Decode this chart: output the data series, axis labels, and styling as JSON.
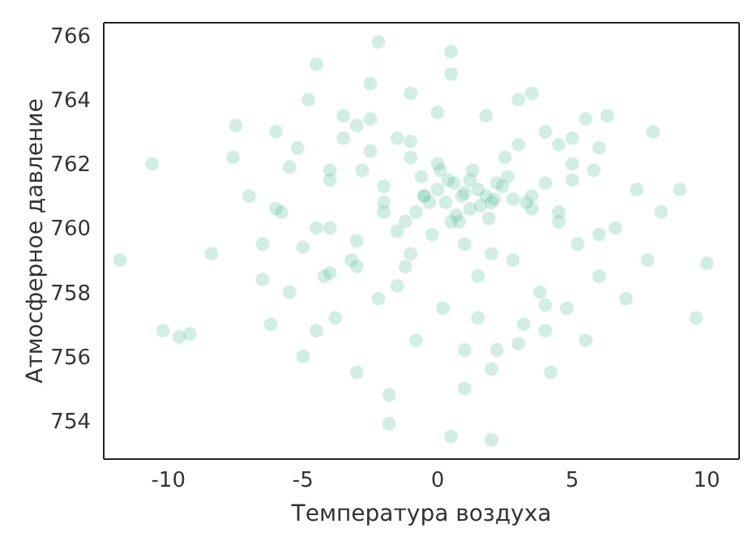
{
  "chart_data": {
    "type": "scatter",
    "xlabel": "Температура воздуха",
    "ylabel": "Атмосферное давление",
    "xlim": [
      -12.4,
      11.2
    ],
    "ylim": [
      752.8,
      766.4
    ],
    "xticks": [
      -10,
      -5,
      0,
      5,
      10
    ],
    "yticks": [
      754,
      756,
      758,
      760,
      762,
      764,
      766
    ],
    "grid": false,
    "legend": false,
    "marker": "circle",
    "series": [
      {
        "color": "#66c2a5",
        "x": [
          -11.8,
          -10.6,
          -10.2,
          -9.6,
          -9.2,
          -8.4,
          -7.6,
          -7.5,
          9.6,
          10,
          8,
          9,
          0.5,
          2,
          -1.8,
          -4.5,
          -2.2,
          0.5,
          -7,
          -6.5,
          -6.2,
          -6,
          -5.8,
          -5.5,
          -5.2,
          -5,
          -4.8,
          -4.5,
          -4.2,
          -4,
          -3.8,
          -3.5,
          -3.2,
          -3,
          -2.8,
          -2.5,
          -2.2,
          -2,
          -1.8,
          -1.5,
          -1.2,
          -1,
          -0.8,
          -0.5,
          -0.2,
          0,
          0.2,
          0.5,
          0.8,
          1,
          1.2,
          1.5,
          1.8,
          2,
          2.2,
          2.5,
          2.8,
          3,
          3.2,
          3.5,
          3.8,
          4,
          4.2,
          4.5,
          4.8,
          5,
          5.2,
          5.5,
          5.8,
          6,
          6.3,
          6.6,
          7,
          7.4,
          7.8,
          8.3,
          -0.5,
          0,
          0.3,
          0.6,
          0.9,
          1.2,
          1.5,
          1.8,
          2.1,
          2.4,
          -0.8,
          -0.3,
          0.4,
          1,
          1.6,
          2.2,
          2.8,
          -1.2,
          -0.6,
          0.1,
          0.7,
          1.3,
          1.9,
          2.6,
          3.3,
          -2,
          -1.5,
          -1,
          1,
          3.5,
          4,
          -3,
          -2.5,
          -4,
          -3.5,
          5,
          4.5,
          6,
          -6,
          -5,
          -4,
          -3,
          -2,
          -1,
          0,
          1,
          2,
          3,
          4,
          5,
          6,
          -6.5,
          -5.5,
          -4.5,
          -2.5,
          -1.5,
          0.5,
          1.5,
          3.5,
          4.5,
          5.5,
          -3,
          -1,
          2,
          4,
          -4,
          3
        ],
        "values": [
          759,
          762,
          756.8,
          756.6,
          756.7,
          759.2,
          762.2,
          763.2,
          757.2,
          758.9,
          763,
          761.2,
          753.5,
          753.4,
          753.9,
          765.1,
          765.8,
          765.5,
          761,
          759.5,
          757,
          763,
          760.5,
          758,
          762.5,
          756,
          764,
          760,
          758.5,
          761.5,
          757.2,
          763.5,
          759,
          755.5,
          761.8,
          764.5,
          757.8,
          760.5,
          754.8,
          762.8,
          758.8,
          764.2,
          756.5,
          761,
          759.8,
          762,
          757.5,
          764.8,
          760.2,
          755,
          761.5,
          758.5,
          763.5,
          760.8,
          756.2,
          762.2,
          759,
          764,
          757,
          761,
          758,
          763,
          755.5,
          760.5,
          757.5,
          762,
          759.5,
          756.5,
          761.8,
          758.5,
          763.5,
          760,
          757.8,
          761.2,
          759,
          760.5,
          761,
          761.2,
          760.8,
          761.4,
          761,
          760.6,
          761.2,
          761,
          760.9,
          761.3,
          760.5,
          760.8,
          761.5,
          761.1,
          760.7,
          761.4,
          760.9,
          760.2,
          761.6,
          761.8,
          760.4,
          761.8,
          760.3,
          761.6,
          760.8,
          761.3,
          759.9,
          762.2,
          759.5,
          760.6,
          761.4,
          759.6,
          762.4,
          760,
          762.8,
          761.5,
          760.2,
          762.5,
          760.6,
          759.4,
          761.8,
          763.2,
          760.8,
          759.2,
          763.6,
          756.2,
          759.2,
          762.6,
          757.6,
          762.8,
          759.8,
          758.4,
          761.9,
          756.8,
          763.4,
          758.2,
          760.2,
          757.2,
          764.2,
          762.6,
          763.4,
          758.8,
          762.7,
          755.6,
          756.8,
          758.6,
          756.4
        ]
      }
    ]
  }
}
